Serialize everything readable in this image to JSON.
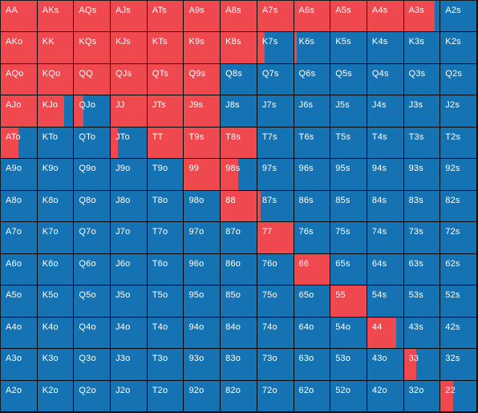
{
  "colors": {
    "raise": "#f0484f",
    "fold": "#1673b3",
    "border": "#000000",
    "text": "#ffffff"
  },
  "grid": {
    "rows": 13,
    "cols": 13,
    "labels": [
      [
        "AA",
        "AKs",
        "AQs",
        "AJs",
        "ATs",
        "A9s",
        "A8s",
        "A7s",
        "A6s",
        "A5s",
        "A4s",
        "A3s",
        "A2s"
      ],
      [
        "AKo",
        "KK",
        "KQs",
        "KJs",
        "KTs",
        "K9s",
        "K8s",
        "K7s",
        "K6s",
        "K5s",
        "K4s",
        "K3s",
        "K2s"
      ],
      [
        "AQo",
        "KQo",
        "QQ",
        "QJs",
        "QTs",
        "Q9s",
        "Q8s",
        "Q7s",
        "Q6s",
        "Q5s",
        "Q4s",
        "Q3s",
        "Q2s"
      ],
      [
        "AJo",
        "KJo",
        "QJo",
        "JJ",
        "JTs",
        "J9s",
        "J8s",
        "J7s",
        "J6s",
        "J5s",
        "J4s",
        "J3s",
        "J2s"
      ],
      [
        "ATo",
        "KTo",
        "QTo",
        "JTo",
        "TT",
        "T9s",
        "T8s",
        "T7s",
        "T6s",
        "T5s",
        "T4s",
        "T3s",
        "T2s"
      ],
      [
        "A9o",
        "K9o",
        "Q9o",
        "J9o",
        "T9o",
        "99",
        "98s",
        "97s",
        "96s",
        "95s",
        "94s",
        "93s",
        "92s"
      ],
      [
        "A8o",
        "K8o",
        "Q8o",
        "J8o",
        "T8o",
        "98o",
        "88",
        "87s",
        "86s",
        "85s",
        "84s",
        "83s",
        "82s"
      ],
      [
        "A7o",
        "K7o",
        "Q7o",
        "J7o",
        "T7o",
        "97o",
        "87o",
        "77",
        "76s",
        "75s",
        "74s",
        "73s",
        "72s"
      ],
      [
        "A6o",
        "K6o",
        "Q6o",
        "J6o",
        "T6o",
        "96o",
        "86o",
        "76o",
        "66",
        "65s",
        "64s",
        "63s",
        "62s"
      ],
      [
        "A5o",
        "K5o",
        "Q5o",
        "J5o",
        "T5o",
        "95o",
        "85o",
        "75o",
        "65o",
        "55",
        "54s",
        "53s",
        "52s"
      ],
      [
        "A4o",
        "K4o",
        "Q4o",
        "J4o",
        "T4o",
        "94o",
        "84o",
        "74o",
        "64o",
        "54o",
        "44",
        "43s",
        "42s"
      ],
      [
        "A3o",
        "K3o",
        "Q3o",
        "J3o",
        "T3o",
        "93o",
        "83o",
        "73o",
        "63o",
        "53o",
        "43o",
        "33",
        "32s"
      ],
      [
        "A2o",
        "K2o",
        "Q2o",
        "J2o",
        "T2o",
        "92o",
        "82o",
        "72o",
        "62o",
        "52o",
        "42o",
        "32o",
        "22"
      ]
    ],
    "raise_freq": [
      [
        1,
        1,
        1,
        1,
        1,
        1,
        1,
        1,
        1,
        1,
        1,
        0.85,
        0
      ],
      [
        1,
        1,
        1,
        1,
        1,
        1,
        1,
        0.2,
        0.08,
        0,
        0,
        0,
        0
      ],
      [
        1,
        1,
        1,
        1,
        1,
        1,
        0,
        0,
        0,
        0,
        0,
        0,
        0
      ],
      [
        1,
        0.75,
        0.25,
        1,
        1,
        1,
        0,
        0,
        0,
        0,
        0,
        0,
        0
      ],
      [
        0.5,
        0,
        0,
        0.2,
        1,
        1,
        1,
        0,
        0,
        0,
        0,
        0,
        0
      ],
      [
        0,
        0,
        0,
        0,
        0,
        1,
        0.5,
        0,
        0,
        0,
        0,
        0,
        0
      ],
      [
        0,
        0,
        0,
        0,
        0,
        0,
        1,
        0.1,
        0,
        0,
        0,
        0,
        0
      ],
      [
        0,
        0,
        0,
        0,
        0,
        0,
        0,
        1,
        0,
        0,
        0,
        0,
        0
      ],
      [
        0,
        0,
        0,
        0,
        0,
        0,
        0,
        0,
        1,
        0,
        0,
        0,
        0
      ],
      [
        0,
        0,
        0,
        0,
        0,
        0,
        0,
        0,
        0,
        1,
        0,
        0,
        0
      ],
      [
        0,
        0,
        0,
        0,
        0,
        0,
        0,
        0,
        0,
        0,
        0.8,
        0,
        0
      ],
      [
        0,
        0,
        0,
        0,
        0,
        0,
        0,
        0,
        0,
        0,
        0,
        0.35,
        0
      ],
      [
        0,
        0,
        0,
        0,
        0,
        0,
        0,
        0,
        0,
        0,
        0,
        0,
        0.35
      ]
    ]
  }
}
